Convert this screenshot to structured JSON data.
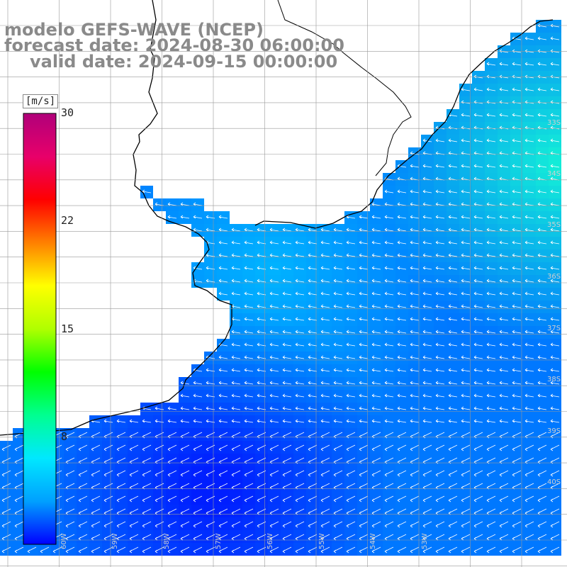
{
  "header": {
    "title_model": "modelo GEFS-WAVE (NCEP)",
    "title_forecast": "forecast date: 2024-08-30 06:00:00",
    "title_valid": "valid date: 2024-09-15 00:00:00"
  },
  "colorbar": {
    "unit": "[m/s]",
    "ticks": [
      "30",
      "22",
      "15",
      "8"
    ],
    "range_min": 0,
    "range_max": 30,
    "colors": [
      "#0000ff",
      "#00a0ff",
      "#00e8ff",
      "#00ff90",
      "#00ff00",
      "#b0ff00",
      "#ffff00",
      "#ff8000",
      "#ff0000",
      "#e8006a",
      "#b0007a"
    ]
  },
  "map": {
    "latitude_labels": [
      "33S",
      "34S",
      "35S",
      "36S",
      "37S",
      "38S",
      "39S",
      "40S"
    ],
    "longitude_labels": [
      "60W",
      "59W",
      "58W",
      "57W",
      "56W",
      "55W",
      "54W",
      "53W"
    ],
    "land_color": "#ffffff",
    "coastline_color": "#000000",
    "grid_color": "#999999",
    "arrow_color": "#ffffff"
  }
}
